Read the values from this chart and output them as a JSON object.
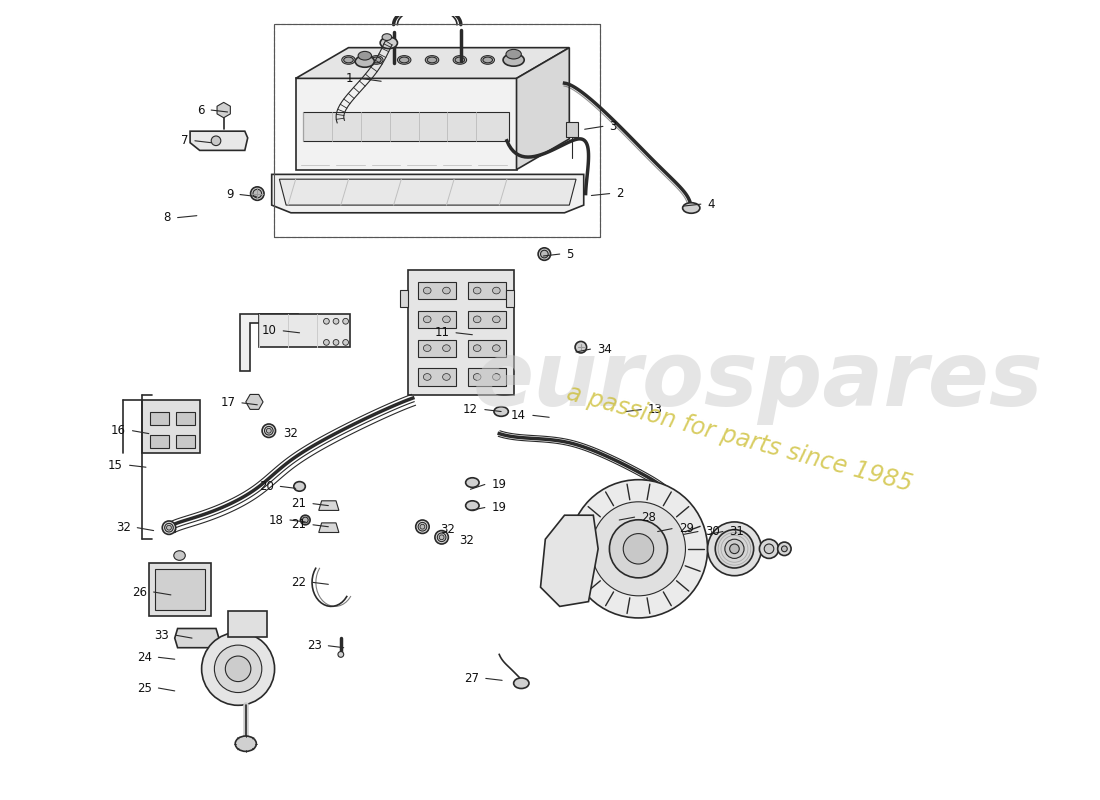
{
  "bg_color": "#ffffff",
  "line_color": "#2a2a2a",
  "watermark1": "eurospares",
  "watermark2": "a passion for parts since 1985",
  "wm_color1": "#cccccc",
  "wm_color2": "#c8b820",
  "figsize": [
    11.0,
    8.0
  ],
  "dpi": 100
}
